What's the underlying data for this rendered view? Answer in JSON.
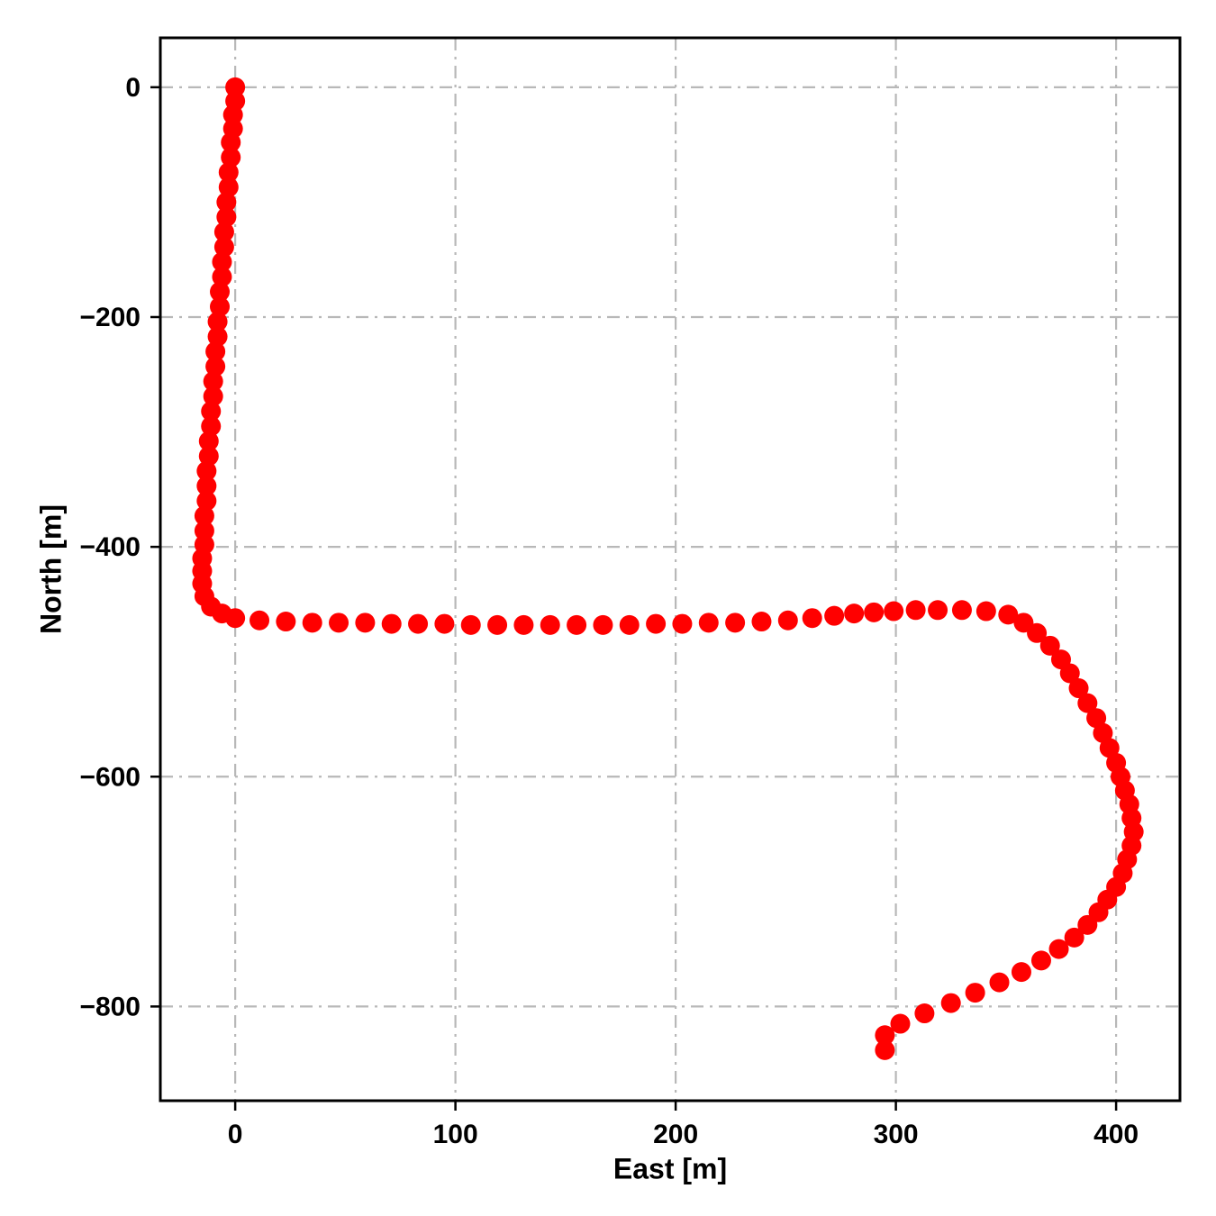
{
  "figure": {
    "background": "#ffffff",
    "frame_color": "#000000",
    "grid_color": "#b8b8b8"
  },
  "chart_data": {
    "type": "scatter",
    "title": "",
    "xlabel": "East [m]",
    "ylabel": "North [m]",
    "xlim": [
      -34,
      429
    ],
    "ylim": [
      -882,
      43
    ],
    "x_ticks": [
      0,
      100,
      200,
      300,
      400
    ],
    "y_ticks": [
      0,
      -200,
      -400,
      -600,
      -800
    ],
    "grid": true,
    "grid_style": "dash-dot",
    "legend": "none",
    "marker_color": "#ff0000",
    "marker_radius_px": 11,
    "points": [
      [
        0,
        0
      ],
      [
        0,
        -12
      ],
      [
        -1,
        -24
      ],
      [
        -1,
        -36
      ],
      [
        -2,
        -48
      ],
      [
        -2,
        -61
      ],
      [
        -3,
        -74
      ],
      [
        -3,
        -87
      ],
      [
        -4,
        -100
      ],
      [
        -4,
        -113
      ],
      [
        -5,
        -126
      ],
      [
        -5,
        -139
      ],
      [
        -6,
        -152
      ],
      [
        -6,
        -165
      ],
      [
        -7,
        -178
      ],
      [
        -7,
        -191
      ],
      [
        -8,
        -204
      ],
      [
        -8,
        -217
      ],
      [
        -9,
        -230
      ],
      [
        -9,
        -243
      ],
      [
        -10,
        -256
      ],
      [
        -10,
        -269
      ],
      [
        -11,
        -282
      ],
      [
        -11,
        -295
      ],
      [
        -12,
        -308
      ],
      [
        -12,
        -321
      ],
      [
        -13,
        -334
      ],
      [
        -13,
        -347
      ],
      [
        -13,
        -360
      ],
      [
        -14,
        -373
      ],
      [
        -14,
        -386
      ],
      [
        -14,
        -398
      ],
      [
        -15,
        -410
      ],
      [
        -15,
        -421
      ],
      [
        -15,
        -432
      ],
      [
        -14,
        -443
      ],
      [
        -11,
        -452
      ],
      [
        -6,
        -458
      ],
      [
        0,
        -462
      ],
      [
        11,
        -464
      ],
      [
        23,
        -465
      ],
      [
        35,
        -466
      ],
      [
        47,
        -466
      ],
      [
        59,
        -466
      ],
      [
        71,
        -467
      ],
      [
        83,
        -467
      ],
      [
        95,
        -467
      ],
      [
        107,
        -468
      ],
      [
        119,
        -468
      ],
      [
        131,
        -468
      ],
      [
        143,
        -468
      ],
      [
        155,
        -468
      ],
      [
        167,
        -468
      ],
      [
        179,
        -468
      ],
      [
        191,
        -467
      ],
      [
        203,
        -467
      ],
      [
        215,
        -466
      ],
      [
        227,
        -466
      ],
      [
        239,
        -465
      ],
      [
        251,
        -464
      ],
      [
        262,
        -462
      ],
      [
        272,
        -460
      ],
      [
        281,
        -458
      ],
      [
        290,
        -457
      ],
      [
        299,
        -456
      ],
      [
        309,
        -455
      ],
      [
        319,
        -455
      ],
      [
        330,
        -455
      ],
      [
        341,
        -456
      ],
      [
        351,
        -459
      ],
      [
        358,
        -466
      ],
      [
        364,
        -475
      ],
      [
        370,
        -486
      ],
      [
        375,
        -498
      ],
      [
        379,
        -510
      ],
      [
        383,
        -523
      ],
      [
        387,
        -536
      ],
      [
        391,
        -549
      ],
      [
        394,
        -562
      ],
      [
        397,
        -575
      ],
      [
        400,
        -588
      ],
      [
        402,
        -600
      ],
      [
        404,
        -612
      ],
      [
        406,
        -624
      ],
      [
        407,
        -636
      ],
      [
        408,
        -648
      ],
      [
        407,
        -660
      ],
      [
        405,
        -672
      ],
      [
        403,
        -684
      ],
      [
        400,
        -696
      ],
      [
        396,
        -707
      ],
      [
        392,
        -718
      ],
      [
        387,
        -729
      ],
      [
        381,
        -740
      ],
      [
        374,
        -750
      ],
      [
        366,
        -760
      ],
      [
        357,
        -770
      ],
      [
        347,
        -779
      ],
      [
        336,
        -788
      ],
      [
        325,
        -797
      ],
      [
        313,
        -806
      ],
      [
        302,
        -815
      ],
      [
        295,
        -825
      ],
      [
        295,
        -838
      ]
    ]
  }
}
